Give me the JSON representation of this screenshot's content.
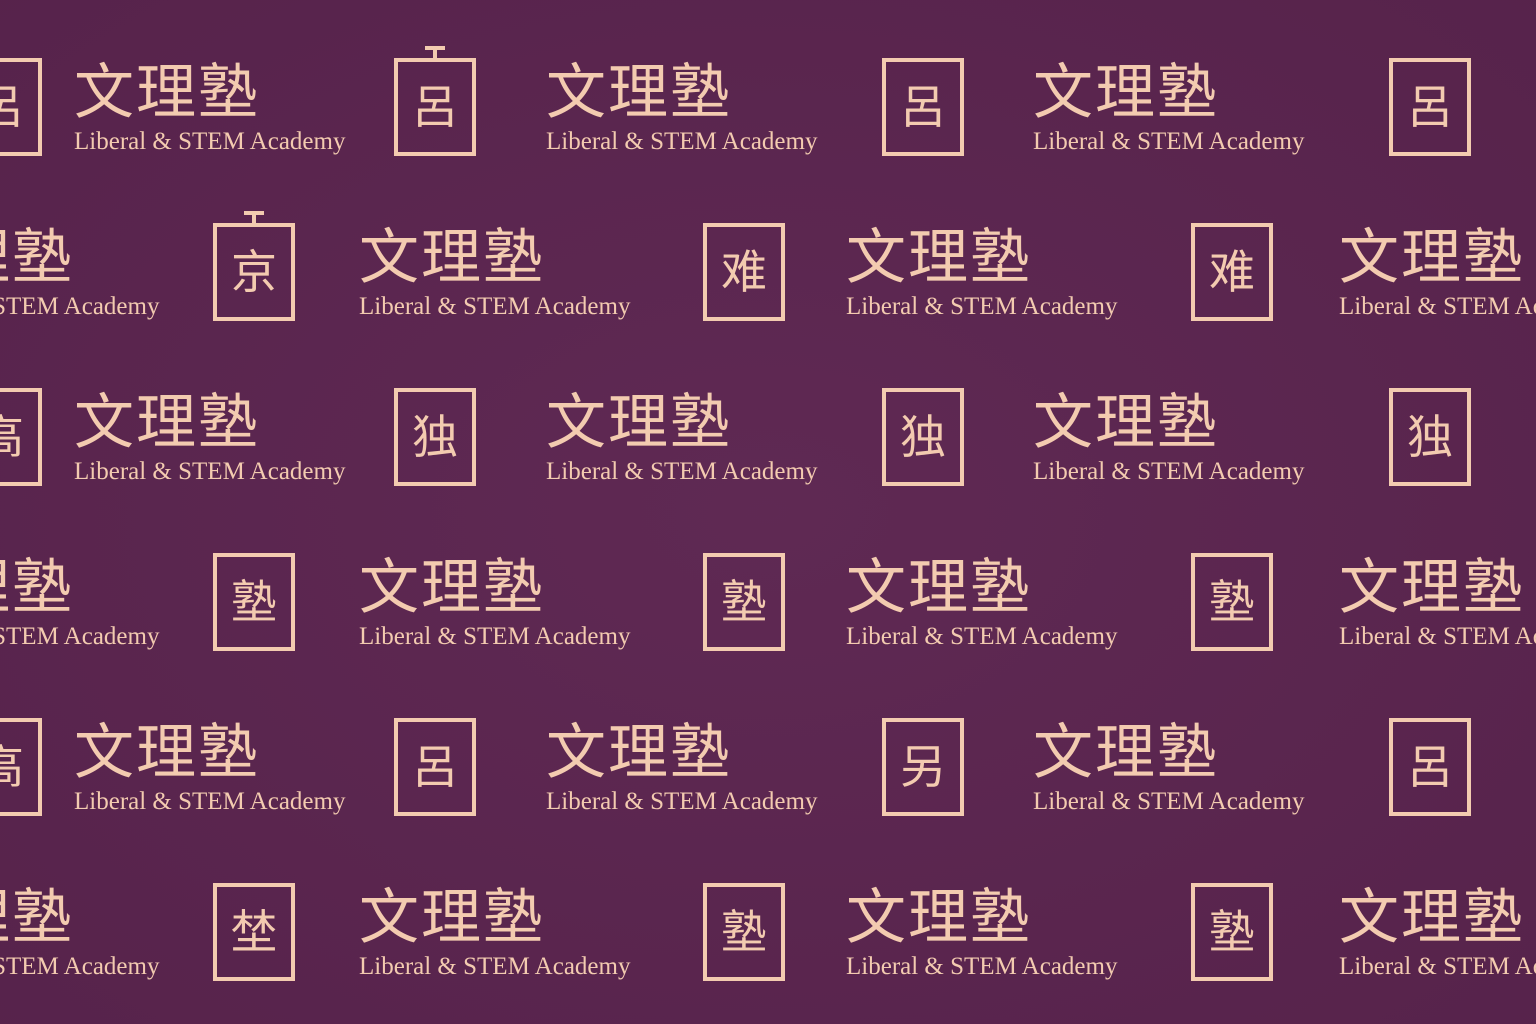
{
  "brand": {
    "name_cn": "文理塾",
    "name_en": "Liberal & STEM Academy"
  },
  "colors": {
    "background": "#5c2550",
    "ink": "#f3cbb0"
  },
  "pattern": {
    "rows": [
      {
        "seals": [
          "呂",
          "呂",
          "呂",
          "呂"
        ]
      },
      {
        "seals": [
          "京",
          "难",
          "难"
        ]
      },
      {
        "seals": [
          "高",
          "独",
          "独",
          "独"
        ]
      },
      {
        "seals": [
          "塾",
          "塾",
          "塾"
        ]
      },
      {
        "seals": [
          "高",
          "呂",
          "另",
          "呂"
        ]
      },
      {
        "seals": [
          "埜",
          "塾",
          "塾"
        ]
      }
    ]
  }
}
